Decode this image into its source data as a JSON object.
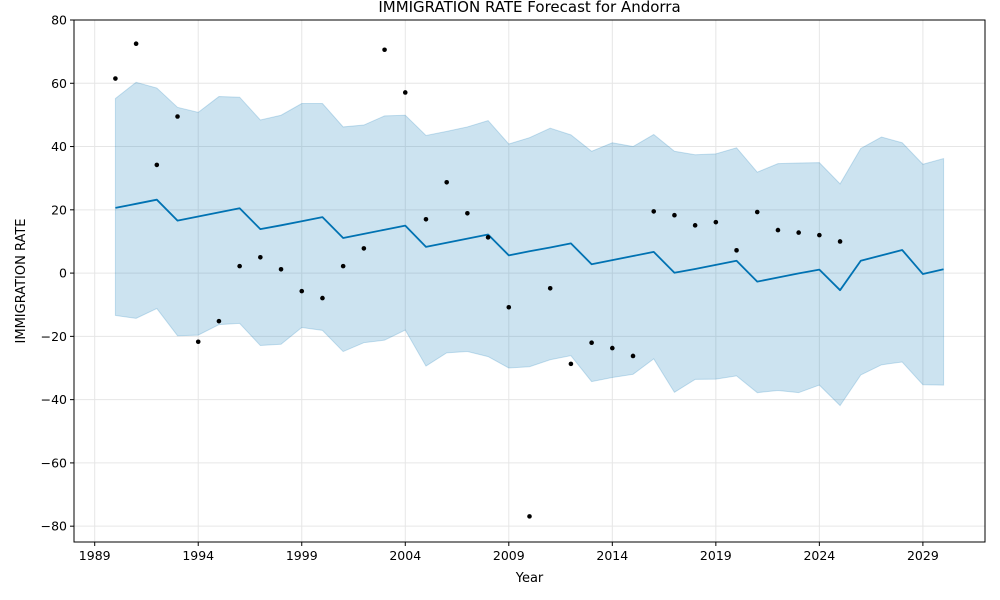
{
  "chart_data": {
    "type": "line",
    "title": "IMMIGRATION RATE Forecast for Andorra",
    "xlabel": "Year",
    "ylabel": "IMMIGRATION RATE",
    "xlim": [
      1988,
      2032
    ],
    "ylim": [
      -85,
      80
    ],
    "grid": true,
    "x_ticks": [
      "1989",
      "1994",
      "1999",
      "2004",
      "2009",
      "2014",
      "2019",
      "2024",
      "2029"
    ],
    "y_ticks": [
      "80",
      "60",
      "40",
      "20",
      "0",
      "−20",
      "−40",
      "−60",
      "−80"
    ],
    "colors": {
      "forecast_line": "#0072b2",
      "interval_fill": "#0072b2",
      "observed_points": "#000000"
    },
    "observed": {
      "x": [
        1990,
        1991,
        1992,
        1993,
        1994,
        1995,
        1996,
        1997,
        1998,
        1999,
        2000,
        2001,
        2002,
        2003,
        2004,
        2005,
        2006,
        2007,
        2008,
        2009,
        2010,
        2011,
        2012,
        2013,
        2014,
        2015,
        2016,
        2017,
        2018,
        2019,
        2020,
        2021,
        2022,
        2023,
        2024,
        2025
      ],
      "y": [
        61.5,
        72.5,
        34.2,
        49.5,
        -21.7,
        -15.2,
        2.2,
        5.0,
        1.2,
        -5.7,
        -7.9,
        2.2,
        7.8,
        70.6,
        57.1,
        17.0,
        28.7,
        18.9,
        11.3,
        -10.8,
        -76.9,
        -4.8,
        -28.7,
        -22.0,
        -23.7,
        -26.2,
        19.5,
        18.3,
        15.1,
        16.1,
        7.2,
        19.3,
        13.6,
        12.8,
        12.0,
        10.0
      ]
    },
    "forecast": {
      "x": [
        1990,
        1991,
        1992,
        1993,
        1994,
        1995,
        1996,
        1997,
        1998,
        1999,
        2000,
        2001,
        2002,
        2003,
        2004,
        2005,
        2006,
        2007,
        2008,
        2009,
        2010,
        2011,
        2012,
        2013,
        2014,
        2015,
        2016,
        2017,
        2018,
        2019,
        2020,
        2021,
        2022,
        2023,
        2024,
        2025,
        2026,
        2027,
        2028,
        2029,
        2030
      ],
      "yhat": [
        20.6,
        21.9,
        23.2,
        16.6,
        17.9,
        19.2,
        20.5,
        13.9,
        15.1,
        16.4,
        17.7,
        11.1,
        12.4,
        13.7,
        15.0,
        8.3,
        9.6,
        10.9,
        12.2,
        5.6,
        6.9,
        8.1,
        9.4,
        2.8,
        4.1,
        5.4,
        6.7,
        0.1,
        1.3,
        2.6,
        3.9,
        -2.7,
        -1.4,
        -0.1,
        1.1,
        -5.4,
        3.9,
        5.6,
        7.3,
        -0.3,
        1.2
      ],
      "lower": [
        -13.4,
        -14.3,
        -11.2,
        -19.8,
        -19.6,
        -16.3,
        -15.9,
        -22.9,
        -22.5,
        -17.2,
        -18.1,
        -24.8,
        -22.0,
        -21.2,
        -18.0,
        -29.4,
        -25.2,
        -24.8,
        -26.4,
        -30.0,
        -29.6,
        -27.4,
        -26.1,
        -34.3,
        -33.0,
        -32.0,
        -27.1,
        -37.7,
        -33.6,
        -33.5,
        -32.5,
        -37.8,
        -37.1,
        -37.8,
        -35.4,
        -41.9,
        -32.2,
        -29.0,
        -28.1,
        -35.3,
        -35.4
      ],
      "upper": [
        55.2,
        60.3,
        58.5,
        52.4,
        50.8,
        55.8,
        55.6,
        48.4,
        49.9,
        53.6,
        53.6,
        46.2,
        46.8,
        49.7,
        49.9,
        43.5,
        44.8,
        46.2,
        48.2,
        40.8,
        42.8,
        45.8,
        43.7,
        38.5,
        41.2,
        40.0,
        43.8,
        38.5,
        37.4,
        37.7,
        39.6,
        31.9,
        34.6,
        34.8,
        34.9,
        28.2,
        39.4,
        43.0,
        41.2,
        34.4,
        36.2
      ]
    }
  }
}
